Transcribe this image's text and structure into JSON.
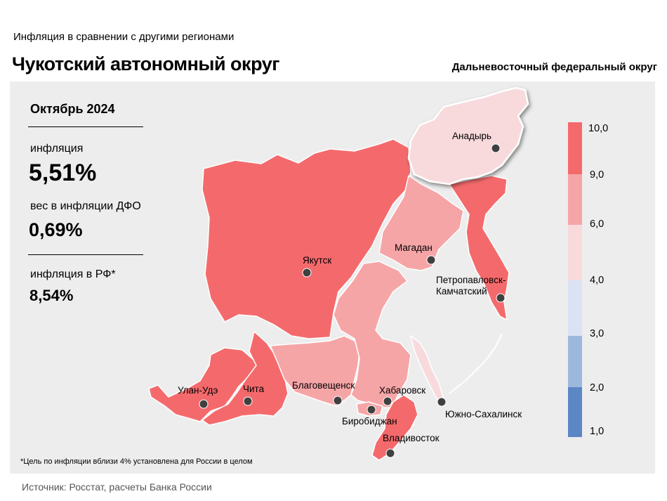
{
  "header": {
    "subtitle": "Инфляция  в сравнении  с другими  регионами",
    "title": "Чукотский автономный округ",
    "district": "Дальневосточный федеральный округ"
  },
  "stats": {
    "period": "Октябрь 2024",
    "inflation_label": "инфляция",
    "inflation_value": "5,51%",
    "weight_label": "вес в инфляции ДФО",
    "weight_value": "0,69%",
    "rf_label": "инфляция  в РФ*",
    "rf_value": "8,54%"
  },
  "colors": {
    "bin_9_10": "#f46a6c",
    "bin_6_9": "#f6a5a7",
    "bin_4_6": "#f8dadd",
    "bin_3_4": "#dae3f3",
    "bin_2_3": "#9db8dd",
    "bin_1_2": "#5b87c5",
    "highlight_region": "#f8dadd"
  },
  "legend": {
    "ticks": [
      "10,0",
      "9,0",
      "6,0",
      "4,0",
      "3,0",
      "2,0",
      "1,0"
    ]
  },
  "cities": {
    "anadyr": "Анадырь",
    "yakutsk": "Якутск",
    "magadan": "Магадан",
    "petropavlovsk": "Петропавловск-Камчатский",
    "ulan_ude": "Улан-Удэ",
    "chita": "Чита",
    "blagoveshchensk": "Благовещенск",
    "khabarovsk": "Хабаровск",
    "birobidzhan": "Биробиджан",
    "vladivostok": "Владивосток",
    "yuzhno": "Южно-Сахалинск"
  },
  "footnote": "*Цель по инфляции вблизи 4%  установлена для  России  в целом",
  "source": "Источник: Росстат, расчеты Банка России"
}
